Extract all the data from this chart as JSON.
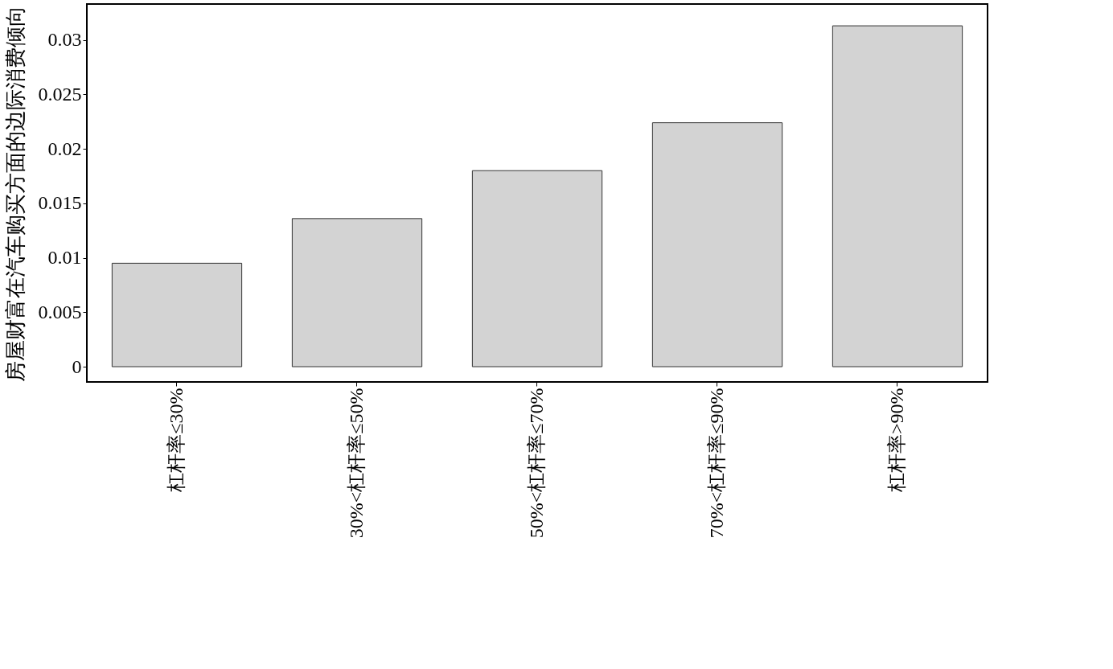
{
  "chart_data": {
    "type": "bar",
    "ylabel": "房屋财富在汽车购买方面的边际消费倾向",
    "categories": [
      "杠杆率≤30%",
      "30%<杠杆率≤50%",
      "50%<杠杆率≤70%",
      "70%<杠杆率≤90%",
      "杠杆率>90%"
    ],
    "values": [
      0.0095,
      0.0136,
      0.018,
      0.0224,
      0.0313
    ],
    "color": "#d3d3d3",
    "ylim": [
      -0.0014,
      0.0333
    ],
    "yticks": [
      0,
      0.005,
      0.01,
      0.015,
      0.02,
      0.025,
      0.03
    ],
    "grid": false
  }
}
